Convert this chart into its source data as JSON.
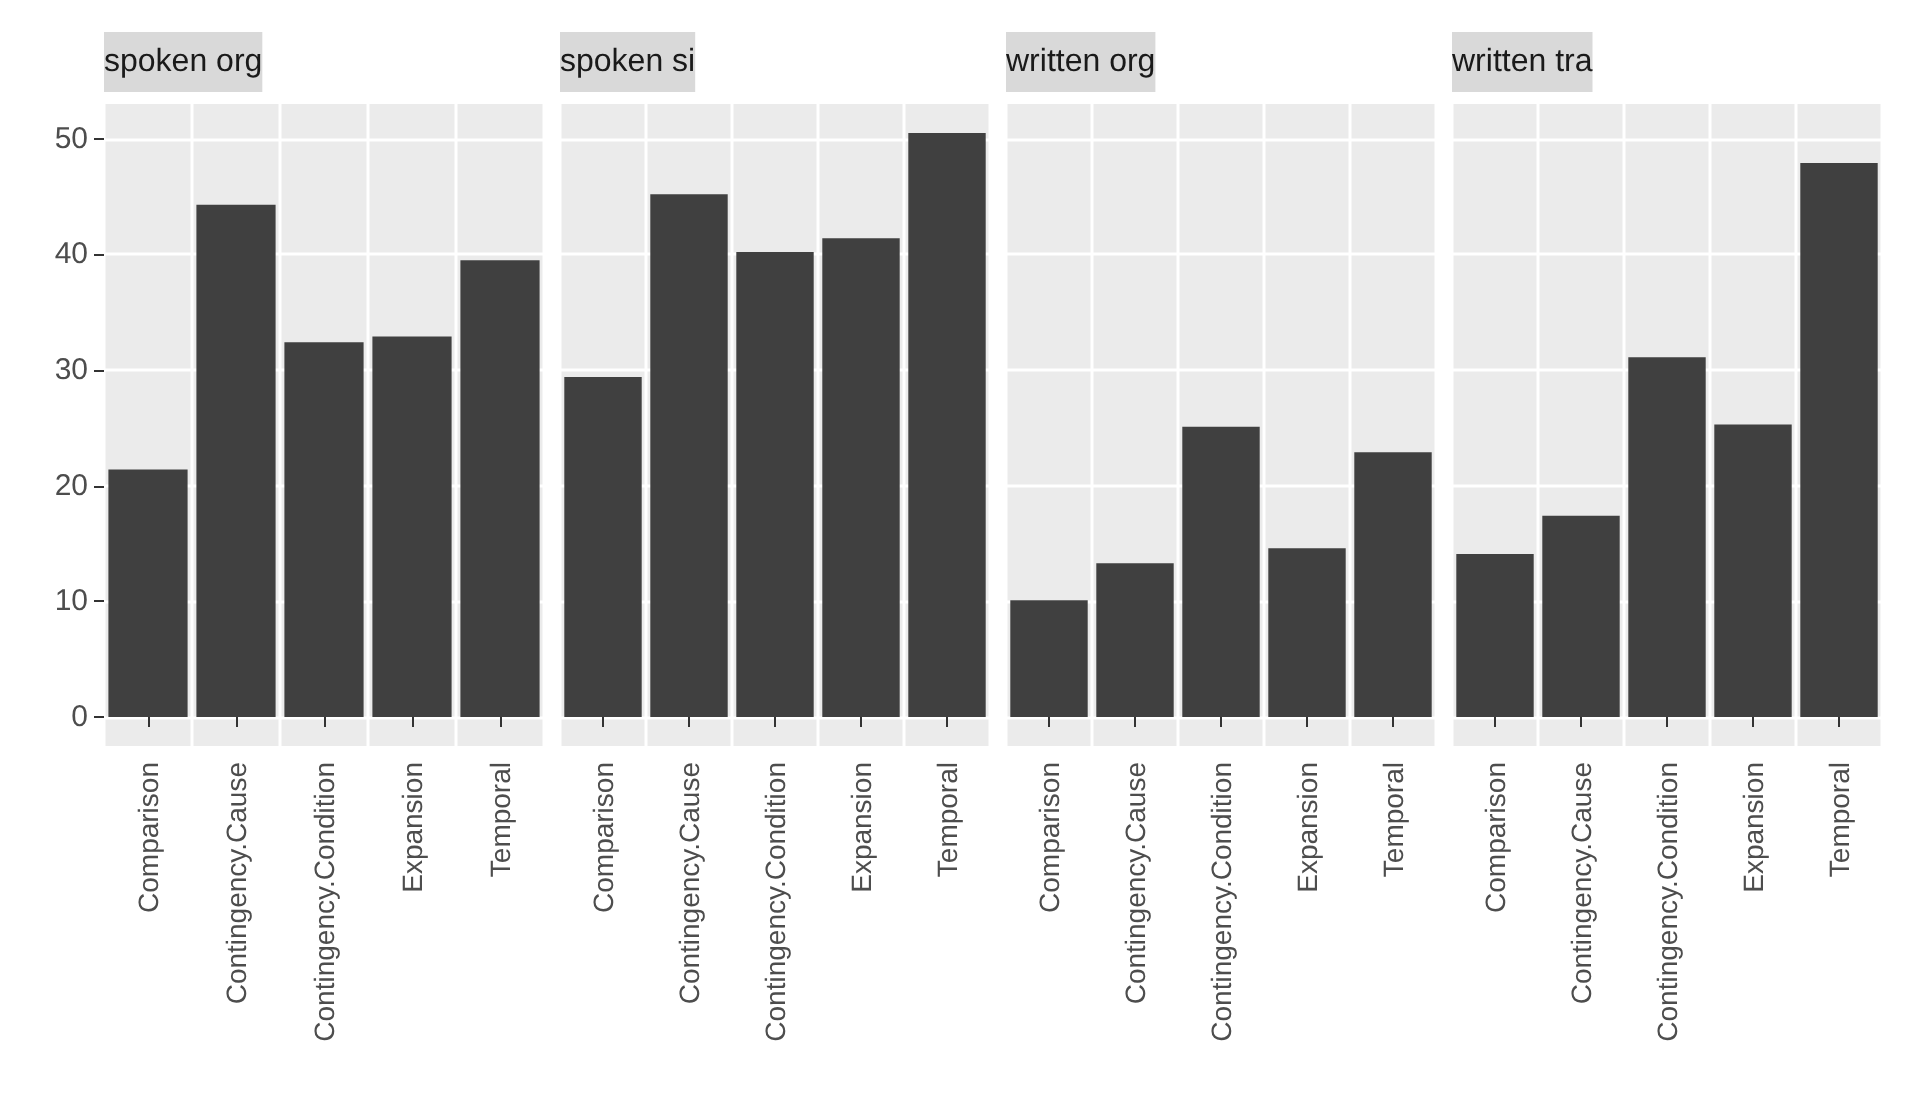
{
  "chart_data": [
    {
      "type": "bar",
      "title": "spoken org",
      "categories": [
        "Comparison",
        "Contingency.Cause",
        "Contingency.Condition",
        "Expansion",
        "Temporal"
      ],
      "values": [
        21.4,
        44.3,
        32.4,
        32.9,
        39.5
      ],
      "color": "#404040",
      "ylim": [
        -2.5,
        53
      ],
      "yticks": [
        0,
        10,
        20,
        30,
        40,
        50
      ],
      "grid": true
    },
    {
      "type": "bar",
      "title": "spoken si",
      "categories": [
        "Comparison",
        "Contingency.Cause",
        "Contingency.Condition",
        "Expansion",
        "Temporal"
      ],
      "values": [
        29.4,
        45.2,
        40.2,
        41.4,
        50.5
      ],
      "color": "#404040",
      "ylim": [
        -2.5,
        53
      ],
      "yticks": [
        0,
        10,
        20,
        30,
        40,
        50
      ],
      "grid": true,
      "tick_labels": "x"
    },
    {
      "type": "bar",
      "title": "written org",
      "categories": [
        "Comparison",
        "Contingency.Cause",
        "Contingency.Condition",
        "Expansion",
        "Temporal"
      ],
      "values": [
        10.1,
        13.3,
        25.1,
        14.6,
        22.9
      ],
      "color": "#404040",
      "ylim": [
        -2.5,
        53
      ],
      "yticks": [
        0,
        10,
        20,
        30,
        40,
        50
      ],
      "grid": true,
      "tick_labels": "x"
    },
    {
      "type": "bar",
      "title": "written tra",
      "categories": [
        "Comparison",
        "Contingency.Cause",
        "Contingency.Condition",
        "Expansion",
        "Temporal"
      ],
      "values": [
        14.1,
        17.4,
        31.1,
        25.3,
        47.9
      ],
      "color": "#404040",
      "ylim": [
        -2.5,
        53
      ],
      "yticks": [
        0,
        10,
        20,
        30,
        40,
        50
      ],
      "grid": true,
      "tick_labels": "x"
    }
  ]
}
